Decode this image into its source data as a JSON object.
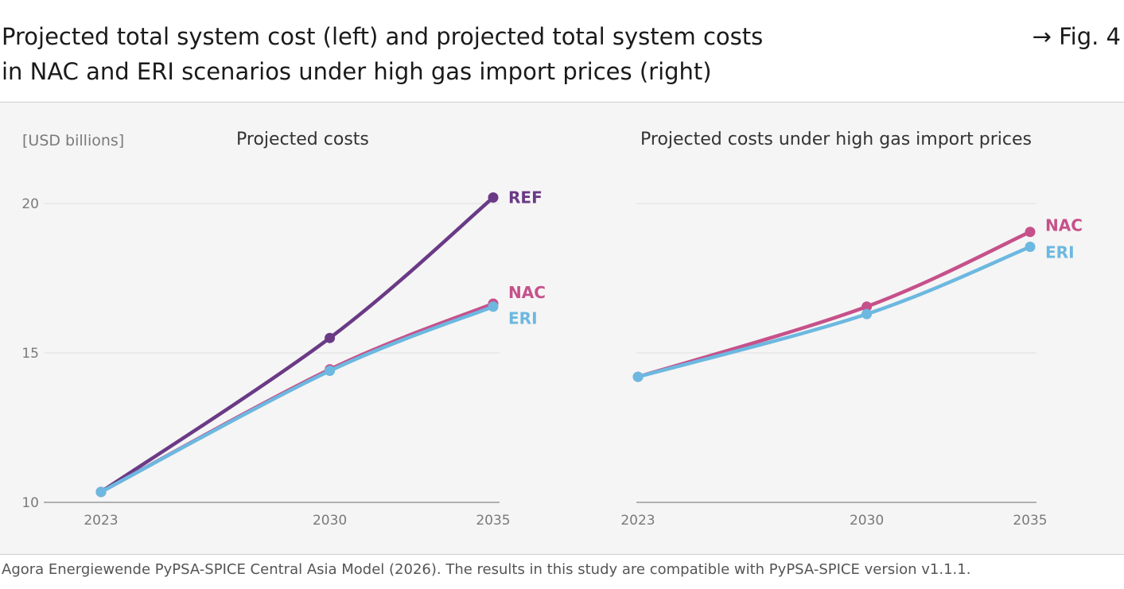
{
  "header": {
    "title_line1": "Projected total system cost (left) and projected total system costs",
    "title_line2": "in NAC and ERI scenarios under high gas import prices (right)",
    "fig_ref": "→ Fig. 4"
  },
  "footer": {
    "source": "Agora Energiewende PyPSA-SPICE Central Asia Model (2026). The results in this study are compatible with PyPSA-SPICE version v1.1.1."
  },
  "colors": {
    "REF": "#6a3a86",
    "NAC": "#c6518a",
    "ERI": "#6cb8e0",
    "grid": "#e6e6e6",
    "axis": "#9a9a9a"
  },
  "chart_data": [
    {
      "type": "line",
      "title": "Projected costs",
      "ylabel": "[USD billions]",
      "x": [
        2023,
        2030,
        2035
      ],
      "xticks": [
        "2023",
        "2030",
        "2035"
      ],
      "yticks": [
        "10",
        "15",
        "20"
      ],
      "ylim": [
        10,
        20
      ],
      "grid": true,
      "series": [
        {
          "name": "REF",
          "values": [
            10.35,
            15.5,
            20.2
          ]
        },
        {
          "name": "NAC",
          "values": [
            10.35,
            14.45,
            16.65
          ]
        },
        {
          "name": "ERI",
          "values": [
            10.35,
            14.4,
            16.55
          ]
        }
      ]
    },
    {
      "type": "line",
      "title": "Projected costs under high gas import prices",
      "x": [
        2023,
        2030,
        2035
      ],
      "xticks": [
        "2023",
        "2030",
        "2035"
      ],
      "ylim": [
        10,
        20
      ],
      "grid": true,
      "series": [
        {
          "name": "NAC",
          "values": [
            14.2,
            16.55,
            19.05
          ]
        },
        {
          "name": "ERI",
          "values": [
            14.2,
            16.3,
            18.55
          ]
        }
      ]
    }
  ]
}
